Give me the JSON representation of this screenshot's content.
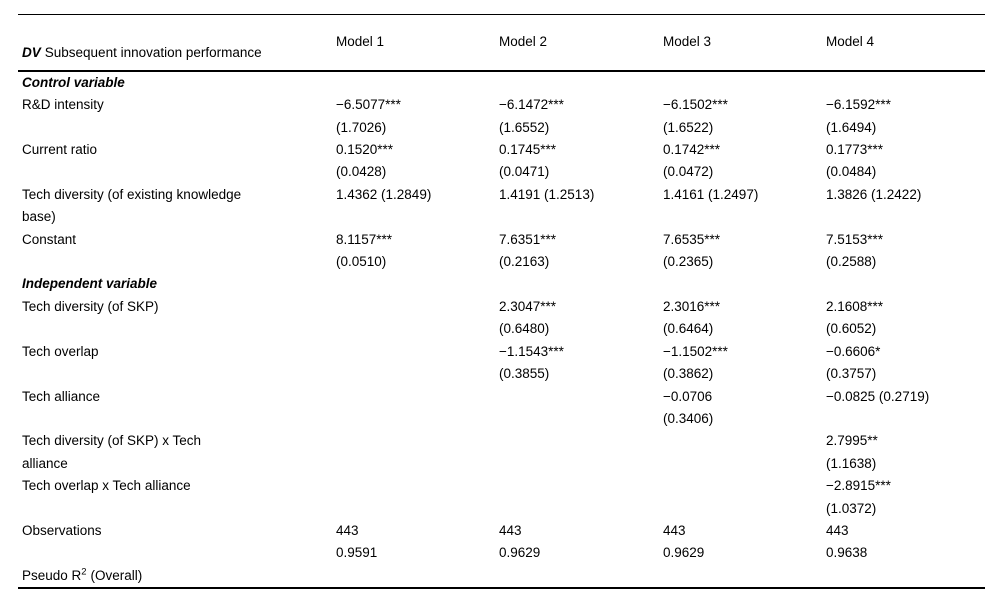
{
  "page": {
    "background": "#ffffff",
    "text_color": "#000000",
    "rule_color": "#000000"
  },
  "table": {
    "header": {
      "dv_bold": "DV",
      "dv_rest": "Subsequent innovation performance",
      "models": [
        "Model 1",
        "Model 2",
        "Model 3",
        "Model 4"
      ]
    },
    "rows": [
      {
        "type": "section",
        "label": "Control variable"
      },
      {
        "type": "data",
        "label": "R&D intensity",
        "cells": [
          "−6.5077***\n(1.7026)",
          "−6.1472***\n(1.6552)",
          "−6.1502***\n(1.6522)",
          "−6.1592***\n(1.6494)"
        ]
      },
      {
        "type": "data",
        "label": "Current ratio",
        "cells": [
          "0.1520***\n(0.0428)",
          "0.1745***\n(0.0471)",
          "0.1742***\n(0.0472)",
          "0.1773***\n(0.0484)"
        ]
      },
      {
        "type": "data",
        "label": "Tech diversity (of existing knowledge\nbase)",
        "cells": [
          "1.4362 (1.2849)",
          "1.4191 (1.2513)",
          "1.4161 (1.2497)",
          "1.3826 (1.2422)"
        ]
      },
      {
        "type": "data",
        "label": "Constant",
        "cells": [
          "8.1157***\n(0.0510)",
          "7.6351***\n(0.2163)",
          "7.6535***\n(0.2365)",
          "7.5153***\n(0.2588)"
        ]
      },
      {
        "type": "section",
        "label": "Independent variable"
      },
      {
        "type": "data",
        "label": "Tech diversity (of SKP)",
        "cells": [
          "",
          "2.3047***\n(0.6480)",
          "2.3016***\n(0.6464)",
          "2.1608***\n(0.6052)"
        ]
      },
      {
        "type": "data",
        "label": "Tech overlap",
        "cells": [
          "",
          "−1.1543***\n(0.3855)",
          "−1.1502***\n(0.3862)",
          "−0.6606*\n(0.3757)"
        ]
      },
      {
        "type": "data",
        "label": "Tech alliance",
        "cells": [
          "",
          "",
          "−0.0706\n(0.3406)",
          "−0.0825 (0.2719)"
        ]
      },
      {
        "type": "data",
        "label": "Tech diversity (of SKP) x Tech\nalliance",
        "cells": [
          "",
          "",
          "",
          "2.7995**\n(1.1638)"
        ]
      },
      {
        "type": "data",
        "label": "Tech overlap x Tech alliance",
        "cells": [
          "",
          "",
          "",
          "−2.8915***\n(1.0372)"
        ]
      },
      {
        "type": "data",
        "label": "Observations",
        "cells": [
          "443",
          "443",
          "443",
          "443"
        ]
      },
      {
        "type": "data-sup",
        "label_pre": "Pseudo R",
        "label_sup": "2",
        "label_post": "(Overall)",
        "cells": [
          "0.9591",
          "0.9629",
          "0.9629",
          "0.9638"
        ]
      }
    ]
  }
}
